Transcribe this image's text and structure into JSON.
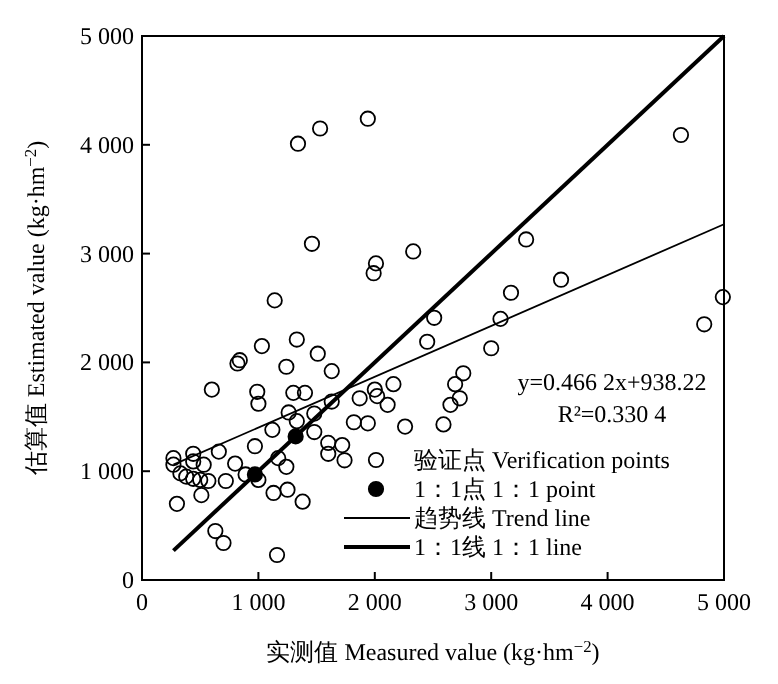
{
  "chart_data": {
    "type": "scatter",
    "xlabel": "实测值 Measured value (kg·hm$^{−2}$)",
    "ylabel": "估算值 Estimated value (kg·hm$^{−2}$)",
    "xlim": [
      0,
      5000
    ],
    "ylim": [
      0,
      5000
    ],
    "xticks": [
      0,
      {
        "value": 1000,
        "label": "1 000"
      },
      {
        "value": 2000,
        "label": "2 000"
      },
      {
        "value": 3000,
        "label": "3 000"
      },
      {
        "value": 4000,
        "label": "4 000"
      },
      {
        "value": 5000,
        "label": "5 000"
      }
    ],
    "yticks": [
      0,
      {
        "value": 1000,
        "label": "1 000"
      },
      {
        "value": 2000,
        "label": "2 000"
      },
      {
        "value": 3000,
        "label": "3 000"
      },
      {
        "value": 4000,
        "label": "4 000"
      },
      {
        "value": 5000,
        "label": "5 000"
      }
    ],
    "grid": false,
    "legend": "bottom right",
    "annotations": [
      "y=0.466 2x+938.22",
      "R²=0.330 4"
    ],
    "series": [
      {
        "name": "验证点 Verification points",
        "type": "scatter",
        "marker": "circle",
        "color": "#000000",
        "x": [
          270,
          270,
          300,
          330,
          380,
          440,
          440,
          440,
          500,
          530,
          510,
          570,
          600,
          630,
          660,
          700,
          720,
          800,
          820,
          840,
          890,
          970,
          990,
          1000,
          1000,
          1030,
          1120,
          1140,
          1130,
          1160,
          1170,
          1240,
          1240,
          1250,
          1260,
          1300,
          1330,
          1340,
          1330,
          1400,
          1380,
          1460,
          1480,
          1480,
          1510,
          1530,
          1600,
          1600,
          1630,
          1630,
          1720,
          1740,
          1820,
          1870,
          1940,
          1940,
          1990,
          2010,
          2000,
          2020,
          2110,
          2160,
          2260,
          2330,
          2450,
          2510,
          3300,
          3170,
          3600,
          3080,
          3000,
          4630,
          4990,
          4830,
          2760,
          2690,
          2730,
          2650,
          2590
        ],
        "values": [
          1120,
          1060,
          700,
          980,
          950,
          1160,
          1090,
          930,
          920,
          1060,
          780,
          910,
          1750,
          450,
          1180,
          340,
          910,
          1070,
          1990,
          2020,
          970,
          1230,
          1730,
          1620,
          920,
          2150,
          1380,
          2570,
          800,
          230,
          1120,
          1960,
          1040,
          830,
          1540,
          1720,
          2210,
          4010,
          1460,
          1720,
          720,
          3090,
          1530,
          1360,
          2080,
          4150,
          1260,
          1160,
          1920,
          1640,
          1240,
          1100,
          1450,
          1670,
          4240,
          1440,
          2820,
          2910,
          1750,
          1690,
          1610,
          1800,
          1410,
          3020,
          2190,
          2410,
          3130,
          2640,
          2760,
          2400,
          2130,
          4090,
          2600,
          2350,
          1900,
          1800,
          1670,
          1610,
          1430
        ]
      },
      {
        "name": "1：1点 1：1 point",
        "type": "scatter",
        "marker": "circle",
        "color": "#000000",
        "x": [
          970,
          1320
        ],
        "values": [
          970,
          1320
        ]
      },
      {
        "name": "趋势线 Trend line",
        "type": "line",
        "color": "#000000",
        "x": [
          270,
          5000
        ],
        "values": [
          1060,
          3270
        ]
      },
      {
        "name": "1：1线 1：1 line",
        "type": "line",
        "color": "#000000",
        "x": [
          270,
          5000
        ],
        "values": [
          270,
          5000
        ]
      }
    ]
  }
}
